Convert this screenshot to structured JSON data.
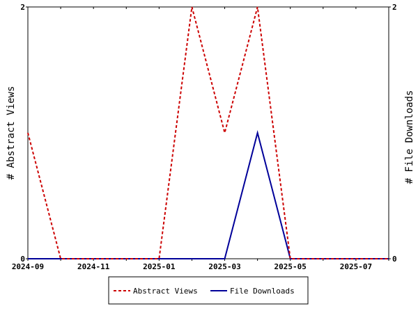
{
  "chart_data": {
    "type": "line",
    "x": [
      "2024-09",
      "2024-10",
      "2024-11",
      "2024-12",
      "2025-01",
      "2025-02",
      "2025-03",
      "2025-04",
      "2025-05",
      "2025-06",
      "2025-07",
      "2025-08"
    ],
    "x_tick_labels": [
      "2024-09",
      "2024-11",
      "2025-01",
      "2025-03",
      "2025-05",
      "2025-07"
    ],
    "ylabel_left": "# Abstract Views",
    "ylabel_right": "# File Downloads",
    "ylim_left": [
      0,
      2
    ],
    "ylim_right": [
      0,
      2
    ],
    "y_tick_labels_left": [
      "0",
      "2"
    ],
    "y_tick_labels_right": [
      "0",
      "2"
    ],
    "grid": false,
    "legend_position": "bottom",
    "series": [
      {
        "name": "Abstract Views",
        "axis": "left",
        "color": "#cc0000",
        "style": "dashed",
        "values": [
          1,
          0,
          0,
          0,
          0,
          2,
          1,
          2,
          0,
          0,
          0,
          0
        ]
      },
      {
        "name": "File Downloads",
        "axis": "right",
        "color": "#000099",
        "style": "solid",
        "values": [
          0,
          0,
          0,
          0,
          0,
          0,
          0,
          1,
          0,
          0,
          0,
          0
        ]
      }
    ]
  }
}
